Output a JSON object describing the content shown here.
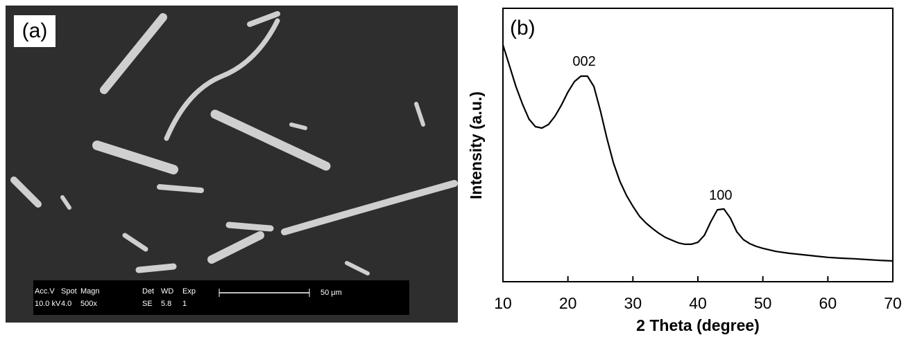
{
  "image_panel": {
    "label": "(a)",
    "info_bar": {
      "headers": [
        "Acc.V",
        "Spot",
        "Magn",
        "Det",
        "WD",
        "Exp"
      ],
      "values": [
        "10.0 kV",
        "4.0",
        "500x",
        "SE",
        "5.8",
        "1"
      ]
    },
    "scale_bar": "50 μm"
  },
  "chart_data": {
    "type": "line",
    "panel_label": "(b)",
    "x_label": "2 Theta (degree)",
    "y_label": "Intensity (a.u.)",
    "x": [
      10,
      11,
      12,
      13,
      14,
      15,
      16,
      17,
      18,
      19,
      20,
      21,
      22,
      23,
      24,
      25,
      26,
      27,
      28,
      29,
      30,
      31,
      32,
      33,
      34,
      35,
      36,
      37,
      38,
      39,
      40,
      41,
      42,
      43,
      44,
      45,
      46,
      47,
      48,
      49,
      50,
      52,
      54,
      56,
      58,
      60,
      62,
      64,
      66,
      68,
      70
    ],
    "values": [
      86.6,
      79,
      71.4,
      65,
      59.5,
      56.7,
      56.2,
      57.5,
      60.5,
      64.6,
      69.4,
      73.2,
      75.2,
      75.2,
      71.4,
      62.5,
      52.4,
      43.5,
      36.7,
      31.6,
      27.6,
      24,
      21.5,
      19.5,
      17.7,
      16.2,
      15.2,
      14.2,
      13.7,
      13.7,
      14.4,
      17,
      22,
      26.3,
      26.6,
      23.3,
      18.2,
      15.4,
      13.9,
      12.9,
      12.2,
      11.1,
      10.4,
      9.9,
      9.4,
      8.9,
      8.6,
      8.4,
      8.1,
      7.8,
      7.6
    ],
    "color": "#000000",
    "xlim": [
      10,
      70
    ],
    "xticks": [
      10,
      20,
      30,
      40,
      50,
      60,
      70
    ],
    "ylim": [
      0,
      100
    ],
    "annotations": [
      {
        "text": "002",
        "x": 22.5,
        "y": 80.3
      },
      {
        "text": "100",
        "x": 43.5,
        "y": 31.4
      }
    ]
  }
}
